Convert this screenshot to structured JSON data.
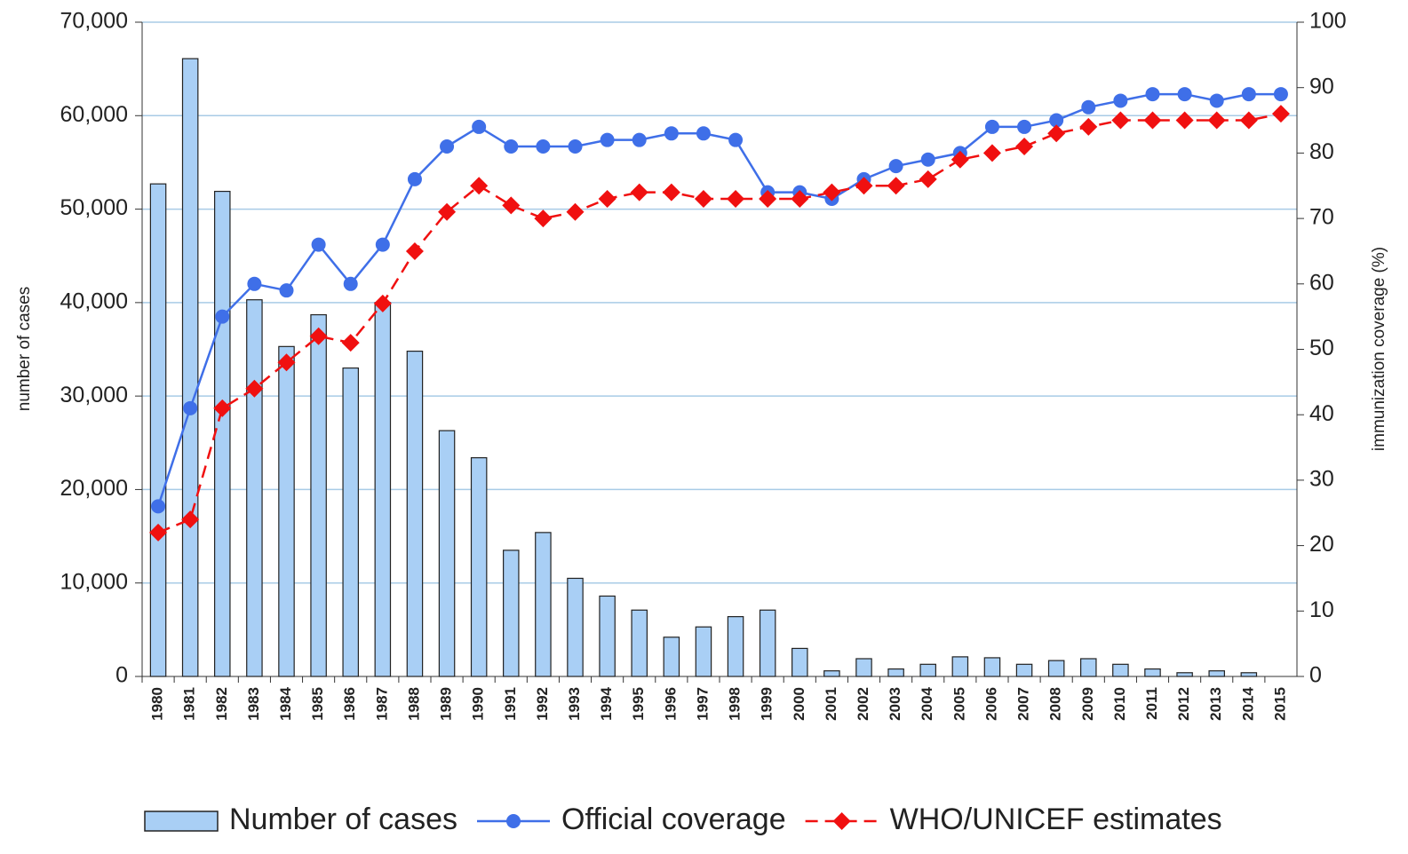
{
  "chart_data": {
    "type": "bar_line",
    "categories": [
      "1980",
      "1981",
      "1982",
      "1983",
      "1984",
      "1985",
      "1986",
      "1987",
      "1988",
      "1989",
      "1990",
      "1991",
      "1992",
      "1993",
      "1994",
      "1995",
      "1996",
      "1997",
      "1998",
      "1999",
      "2000",
      "2001",
      "2002",
      "2003",
      "2004",
      "2005",
      "2006",
      "2007",
      "2008",
      "2009",
      "2010",
      "2011",
      "2012",
      "2013",
      "2014",
      "2015"
    ],
    "ylabel": "number of cases",
    "y2label": "immunization coverage (%)",
    "ylim": [
      0,
      70000
    ],
    "yticks": [
      0,
      {
        "value": 10000,
        "label": "10,000"
      },
      {
        "value": 20000,
        "label": "20,000"
      },
      {
        "value": 30000,
        "label": "30,000"
      },
      {
        "value": 40000,
        "label": "40,000"
      },
      {
        "value": 50000,
        "label": "50,000"
      },
      {
        "value": 60000,
        "label": "60,000"
      },
      {
        "value": 70000,
        "label": "70,000"
      }
    ],
    "y2lim": [
      0,
      100
    ],
    "y2ticks": [
      0,
      10,
      20,
      30,
      40,
      50,
      60,
      70,
      80,
      90,
      100
    ],
    "grid": true,
    "legend": "bottom",
    "series": [
      {
        "name": "Number of cases",
        "type": "bar",
        "color": "#a9cff5",
        "values": [
          52700,
          66100,
          51900,
          40300,
          35300,
          38700,
          33000,
          40000,
          34800,
          26300,
          23400,
          13500,
          15400,
          10500,
          8600,
          7100,
          4200,
          5300,
          6400,
          7100,
          3000,
          600,
          1900,
          800,
          1300,
          2100,
          2000,
          1300,
          1700,
          1900,
          1300,
          800,
          400,
          600,
          400,
          0
        ]
      },
      {
        "name": "Official coverage",
        "type": "line",
        "axis": "y2",
        "color": "#3f6fe8",
        "values": [
          26,
          41,
          55,
          60,
          59,
          66,
          60,
          66,
          76,
          81,
          84,
          81,
          81,
          81,
          82,
          82,
          83,
          83,
          82,
          74,
          74,
          73,
          76,
          78,
          79,
          80,
          84,
          84,
          85,
          87,
          88,
          89,
          89,
          88,
          89,
          89
        ]
      },
      {
        "name": "WHO/UNICEF estimates",
        "type": "line",
        "axis": "y2",
        "color": "#f01010",
        "dashed": true,
        "values": [
          22,
          24,
          41,
          44,
          48,
          52,
          51,
          57,
          65,
          71,
          75,
          72,
          70,
          71,
          73,
          74,
          74,
          73,
          73,
          73,
          73,
          74,
          75,
          75,
          76,
          79,
          80,
          81,
          83,
          84,
          85,
          85,
          85,
          85,
          85,
          86
        ]
      }
    ]
  }
}
